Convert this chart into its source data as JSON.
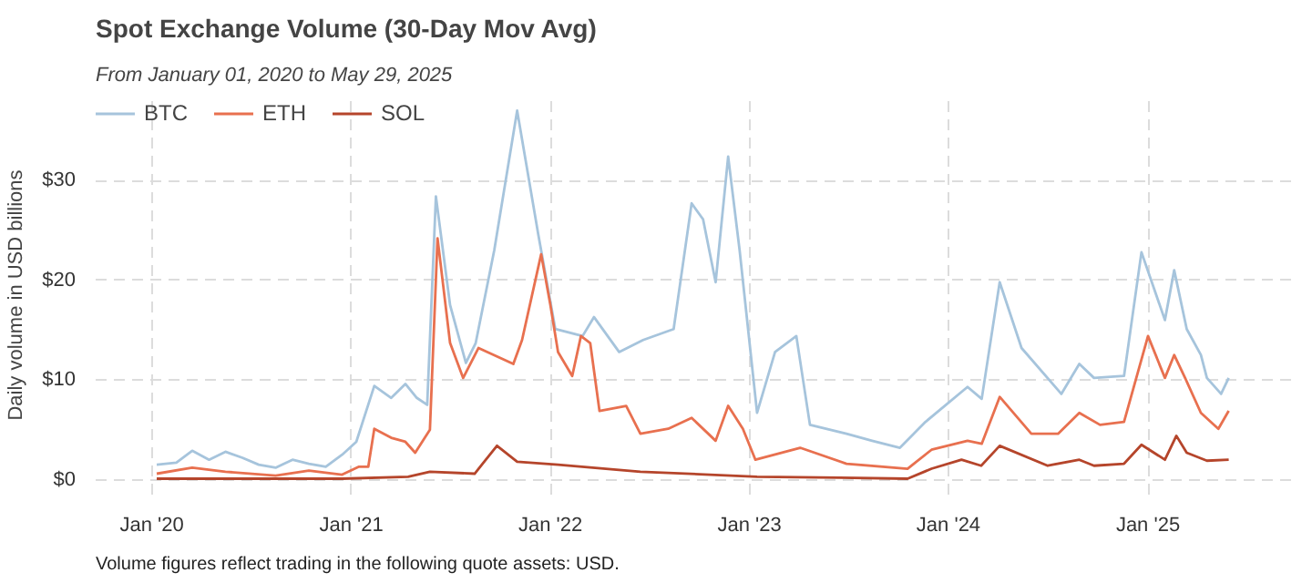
{
  "chart_data": {
    "type": "line",
    "title": "Spot Exchange Volume (30-Day Mov Avg)",
    "subtitle": "From January 01, 2020 to May 29, 2025",
    "ylabel": "Daily volume in USD billions",
    "annotations": [
      "Volume figures reflect trading in the following quote assets: USD."
    ],
    "legend": "top left",
    "grid": true,
    "line_style": "solid",
    "marker": "none",
    "xlim": [
      "2019-09-20",
      "2025-09-27"
    ],
    "ylim": [
      -1.5,
      38.5
    ],
    "xticks": [
      {
        "value": "2020-01-01",
        "label": "Jan '20"
      },
      {
        "value": "2021-01-01",
        "label": "Jan '21"
      },
      {
        "value": "2022-01-01",
        "label": "Jan '22"
      },
      {
        "value": "2023-01-01",
        "label": "Jan '23"
      },
      {
        "value": "2024-01-01",
        "label": "Jan '24"
      },
      {
        "value": "2025-01-01",
        "label": "Jan '25"
      }
    ],
    "yticks": [
      {
        "value": 0,
        "label": "$0"
      },
      {
        "value": 10,
        "label": "$10"
      },
      {
        "value": 20,
        "label": "$20"
      },
      {
        "value": 30,
        "label": "$30"
      }
    ],
    "series": [
      {
        "name": "BTC",
        "color": "#a6c4dc",
        "x": [
          "2020-01-10",
          "2020-02-15",
          "2020-03-15",
          "2020-04-15",
          "2020-05-15",
          "2020-06-15",
          "2020-07-15",
          "2020-08-15",
          "2020-09-15",
          "2020-10-15",
          "2020-11-15",
          "2020-12-15",
          "2021-01-10",
          "2021-02-12",
          "2021-03-15",
          "2021-04-10",
          "2021-05-01",
          "2021-05-20",
          "2021-06-05",
          "2021-07-01",
          "2021-07-30",
          "2021-08-17",
          "2021-09-20",
          "2021-11-01",
          "2021-12-10",
          "2022-01-10",
          "2022-03-01",
          "2022-03-22",
          "2022-05-07",
          "2022-06-20",
          "2022-08-15",
          "2022-09-17",
          "2022-10-08",
          "2022-10-31",
          "2022-11-23",
          "2022-12-14",
          "2023-01-15",
          "2023-02-17",
          "2023-03-28",
          "2023-04-22",
          "2023-06-28",
          "2023-08-14",
          "2023-10-04",
          "2023-11-20",
          "2024-02-05",
          "2024-03-02",
          "2024-04-04",
          "2024-05-14",
          "2024-07-26",
          "2024-08-28",
          "2024-09-24",
          "2024-11-18",
          "2024-12-20",
          "2025-02-01",
          "2025-02-18",
          "2025-03-13",
          "2025-04-08",
          "2025-04-19",
          "2025-05-15",
          "2025-05-29"
        ],
        "values": [
          1.5,
          1.7,
          2.9,
          2.0,
          2.8,
          2.2,
          1.5,
          1.2,
          2.0,
          1.6,
          1.3,
          2.5,
          3.8,
          9.4,
          8.2,
          9.6,
          8.2,
          7.5,
          28.4,
          17.5,
          11.7,
          13.7,
          23,
          37,
          24.5,
          15.1,
          14.4,
          16.3,
          12.8,
          14,
          15.1,
          27.7,
          26.1,
          19.8,
          32.4,
          23,
          6.7,
          12.8,
          14.4,
          5.5,
          4.6,
          3.9,
          3.2,
          5.8,
          9.3,
          8.1,
          19.8,
          13.2,
          8.6,
          11.6,
          10.2,
          10.4,
          22.8,
          16,
          21,
          15.1,
          12.5,
          10.2,
          8.6,
          10.2
        ]
      },
      {
        "name": "ETH",
        "color": "#e8704f",
        "x": [
          "2020-01-10",
          "2020-03-15",
          "2020-05-15",
          "2020-08-15",
          "2020-10-15",
          "2020-12-15",
          "2021-01-15",
          "2021-02-01",
          "2021-02-12",
          "2021-03-15",
          "2021-04-10",
          "2021-04-28",
          "2021-05-25",
          "2021-06-08",
          "2021-07-01",
          "2021-07-25",
          "2021-08-22",
          "2021-10-25",
          "2021-11-10",
          "2021-12-15",
          "2022-01-01",
          "2022-01-15",
          "2022-02-10",
          "2022-02-26",
          "2022-03-15",
          "2022-04-01",
          "2022-05-20",
          "2022-06-15",
          "2022-08-05",
          "2022-09-17",
          "2022-10-31",
          "2022-11-23",
          "2022-12-20",
          "2023-01-12",
          "2023-04-04",
          "2023-06-28",
          "2023-10-18",
          "2023-12-01",
          "2024-02-05",
          "2024-03-02",
          "2024-04-04",
          "2024-06-01",
          "2024-07-20",
          "2024-08-28",
          "2024-10-05",
          "2024-11-18",
          "2025-01-01",
          "2025-02-01",
          "2025-02-18",
          "2025-03-10",
          "2025-04-08",
          "2025-05-10",
          "2025-05-29"
        ],
        "values": [
          0.6,
          1.2,
          0.8,
          0.4,
          0.9,
          0.5,
          1.3,
          1.3,
          5.1,
          4.2,
          3.8,
          2.7,
          5.0,
          24.2,
          13.7,
          10.2,
          13.2,
          11.6,
          14,
          22.6,
          17.5,
          12.8,
          10.4,
          14.4,
          13.7,
          6.9,
          7.4,
          4.6,
          5.1,
          6.2,
          3.9,
          7.4,
          5.1,
          2.0,
          3.2,
          1.6,
          1.1,
          3.0,
          3.9,
          3.6,
          8.3,
          4.6,
          4.6,
          6.7,
          5.5,
          5.8,
          14.4,
          10.2,
          12.5,
          10.2,
          6.7,
          5.1,
          6.9
        ]
      },
      {
        "name": "SOL",
        "color": "#b5452b",
        "x": [
          "2020-01-10",
          "2020-12-15",
          "2021-04-15",
          "2021-05-25",
          "2021-08-15",
          "2021-09-25",
          "2021-11-01",
          "2022-01-15",
          "2022-06-15",
          "2023-01-15",
          "2023-06-15",
          "2023-10-18",
          "2023-12-01",
          "2024-01-25",
          "2024-03-01",
          "2024-04-04",
          "2024-07-01",
          "2024-08-28",
          "2024-09-24",
          "2024-11-18",
          "2024-12-20",
          "2025-02-01",
          "2025-02-22",
          "2025-03-13",
          "2025-04-19",
          "2025-05-29"
        ],
        "values": [
          0.1,
          0.1,
          0.3,
          0.8,
          0.6,
          3.4,
          1.8,
          1.5,
          0.8,
          0.3,
          0.2,
          0.1,
          1.1,
          2.0,
          1.4,
          3.4,
          1.4,
          2.0,
          1.4,
          1.6,
          3.5,
          2.0,
          4.4,
          2.7,
          1.9,
          2.0
        ]
      }
    ]
  }
}
